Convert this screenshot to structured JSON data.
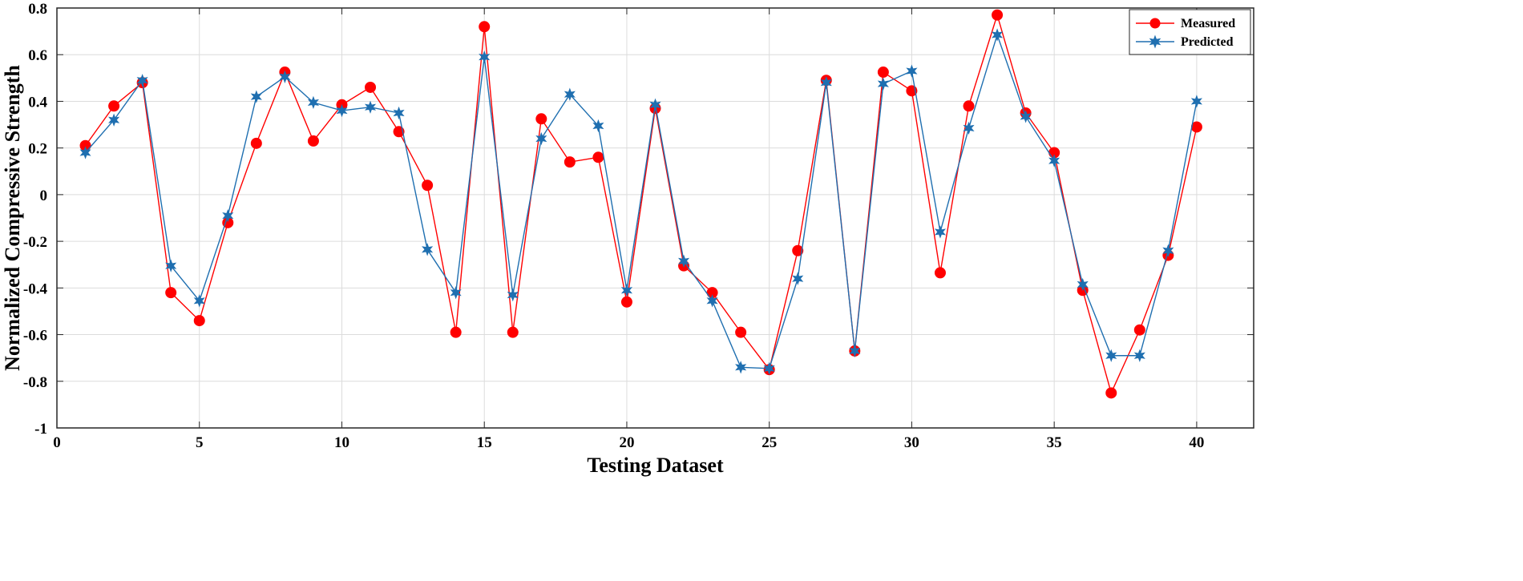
{
  "chart_data": {
    "type": "line",
    "title": "",
    "xlabel": "Testing Dataset",
    "ylabel": "Normalized Compressive Strength",
    "xlim": [
      0,
      42
    ],
    "ylim": [
      -1,
      0.8
    ],
    "xticks": [
      0,
      5,
      10,
      15,
      20,
      25,
      30,
      35,
      40
    ],
    "yticks": [
      -1,
      -0.8,
      -0.6,
      -0.4,
      -0.2,
      0,
      0.2,
      0.4,
      0.6,
      0.8
    ],
    "xtick_labels": [
      "0",
      "5",
      "10",
      "15",
      "20",
      "25",
      "30",
      "35",
      "40"
    ],
    "ytick_labels": [
      "-1",
      "-0.8",
      "-0.6",
      "-0.4",
      "-0.2",
      "0",
      "0.2",
      "0.4",
      "0.6",
      "0.8"
    ],
    "grid": true,
    "legend_position": "top-right",
    "x": [
      1,
      2,
      3,
      4,
      5,
      6,
      7,
      8,
      9,
      10,
      11,
      12,
      13,
      14,
      15,
      16,
      17,
      18,
      19,
      20,
      21,
      22,
      23,
      24,
      25,
      26,
      27,
      28,
      29,
      30,
      31,
      32,
      33,
      34,
      35,
      36,
      37,
      38,
      39,
      40
    ],
    "series": [
      {
        "name": "Measured",
        "color": "#ff0000",
        "marker": "circle",
        "values": [
          0.21,
          0.38,
          0.48,
          -0.42,
          -0.54,
          -0.12,
          0.22,
          0.525,
          0.23,
          0.385,
          0.46,
          0.27,
          0.04,
          -0.59,
          0.72,
          -0.59,
          0.325,
          0.14,
          0.16,
          -0.46,
          0.37,
          -0.305,
          -0.42,
          -0.59,
          -0.75,
          -0.24,
          0.49,
          -0.67,
          0.525,
          0.445,
          -0.335,
          0.38,
          0.77,
          0.35,
          0.18,
          -0.41,
          -0.85,
          -0.58,
          -0.26,
          0.29
        ]
      },
      {
        "name": "Predicted",
        "color": "#1f6fb0",
        "marker": "star",
        "values": [
          0.18,
          0.32,
          0.49,
          -0.305,
          -0.455,
          -0.09,
          0.42,
          0.505,
          0.395,
          0.36,
          0.375,
          0.35,
          -0.235,
          -0.42,
          0.59,
          -0.43,
          0.24,
          0.43,
          0.295,
          -0.41,
          0.385,
          -0.285,
          -0.455,
          -0.74,
          -0.745,
          -0.36,
          0.48,
          -0.67,
          0.475,
          0.53,
          -0.16,
          0.285,
          0.685,
          0.335,
          0.145,
          -0.385,
          -0.69,
          -0.69,
          -0.24,
          0.4
        ]
      }
    ]
  }
}
